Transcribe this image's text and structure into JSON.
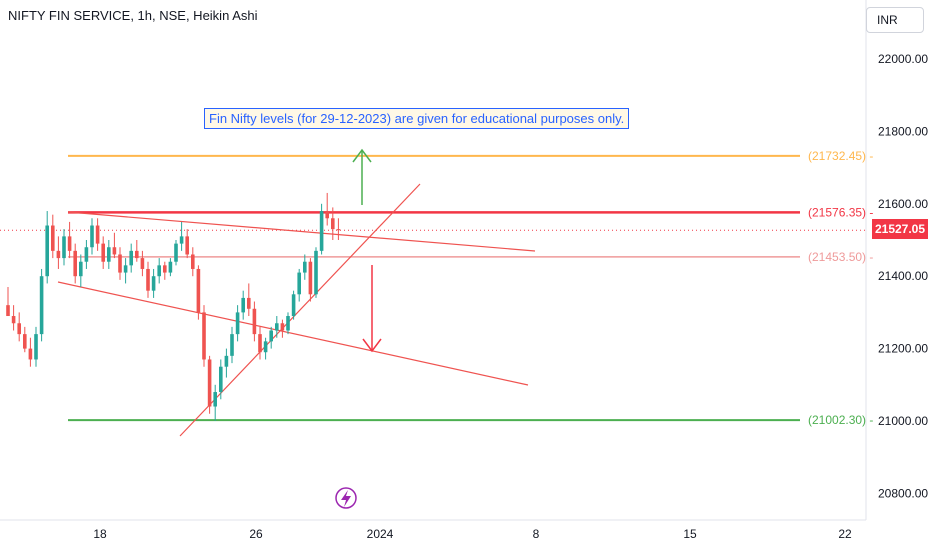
{
  "header": {
    "title": "NIFTY FIN SERVICE, 1h, NSE, Heikin Ashi",
    "currency": "INR"
  },
  "annotations": {
    "note": "Fin Nifty levels (for 29-12-2023) are given for educational purposes only."
  },
  "events": {
    "icon": "lightning-icon"
  },
  "colors": {
    "up": "#26a69a",
    "down": "#ef5350",
    "resistance": "#f23645",
    "support": "#4caf50",
    "target": "#ffb74d",
    "trend": "#ef5350",
    "note": "#2962ff"
  },
  "chart_data": {
    "type": "candlestick",
    "yaxis": {
      "ticks": [
        "22000.00",
        "21800.00",
        "21600.00",
        "21400.00",
        "21200.00",
        "21000.00",
        "20800.00"
      ],
      "ylim": [
        20700,
        22060
      ]
    },
    "xaxis": {
      "ticks": [
        "18",
        "26",
        "2024",
        "8",
        "15",
        "22"
      ]
    },
    "current_price": "21527.05",
    "levels": [
      {
        "label": "(21732.45)",
        "value": 21732.45,
        "color": "#ffb74d"
      },
      {
        "label": "(21576.35)",
        "value": 21576.35,
        "color": "#f23645"
      },
      {
        "label": "(21453.50)",
        "value": 21453.5,
        "color": "#ef9a9a"
      },
      {
        "label": "(21002.30)",
        "value": 21002.3,
        "color": "#4caf50"
      }
    ],
    "arrows": [
      {
        "direction": "up",
        "color": "#4caf50"
      },
      {
        "direction": "down",
        "color": "#f23645"
      }
    ],
    "candles": [
      [
        21320,
        21370,
        21300,
        21290
      ],
      [
        21290,
        21320,
        21250,
        21270
      ],
      [
        21270,
        21300,
        21220,
        21240
      ],
      [
        21240,
        21260,
        21190,
        21200
      ],
      [
        21200,
        21230,
        21150,
        21170
      ],
      [
        21170,
        21260,
        21150,
        21240
      ],
      [
        21240,
        21420,
        21220,
        21400
      ],
      [
        21400,
        21580,
        21380,
        21540
      ],
      [
        21540,
        21570,
        21450,
        21470
      ],
      [
        21470,
        21510,
        21420,
        21450
      ],
      [
        21450,
        21530,
        21430,
        21510
      ],
      [
        21510,
        21550,
        21450,
        21470
      ],
      [
        21470,
        21490,
        21380,
        21400
      ],
      [
        21400,
        21460,
        21370,
        21440
      ],
      [
        21440,
        21500,
        21420,
        21480
      ],
      [
        21480,
        21560,
        21460,
        21540
      ],
      [
        21540,
        21560,
        21470,
        21490
      ],
      [
        21490,
        21510,
        21420,
        21440
      ],
      [
        21440,
        21500,
        21420,
        21480
      ],
      [
        21480,
        21520,
        21450,
        21460
      ],
      [
        21460,
        21480,
        21390,
        21410
      ],
      [
        21410,
        21450,
        21380,
        21430
      ],
      [
        21430,
        21490,
        21410,
        21470
      ],
      [
        21470,
        21500,
        21440,
        21450
      ],
      [
        21450,
        21470,
        21400,
        21420
      ],
      [
        21420,
        21440,
        21340,
        21360
      ],
      [
        21360,
        21420,
        21340,
        21400
      ],
      [
        21400,
        21450,
        21380,
        21430
      ],
      [
        21430,
        21440,
        21390,
        21410
      ],
      [
        21410,
        21450,
        21400,
        21440
      ],
      [
        21440,
        21500,
        21430,
        21490
      ],
      [
        21490,
        21550,
        21470,
        21510
      ],
      [
        21510,
        21530,
        21450,
        21460
      ],
      [
        21460,
        21480,
        21400,
        21420
      ],
      [
        21420,
        21430,
        21280,
        21300
      ],
      [
        21300,
        21320,
        21150,
        21170
      ],
      [
        21170,
        21180,
        21020,
        21040
      ],
      [
        21040,
        21100,
        21000,
        21080
      ],
      [
        21080,
        21170,
        21060,
        21150
      ],
      [
        21150,
        21200,
        21120,
        21180
      ],
      [
        21180,
        21260,
        21160,
        21240
      ],
      [
        21240,
        21320,
        21220,
        21300
      ],
      [
        21300,
        21360,
        21280,
        21340
      ],
      [
        21340,
        21380,
        21290,
        21310
      ],
      [
        21310,
        21330,
        21220,
        21240
      ],
      [
        21240,
        21260,
        21170,
        21190
      ],
      [
        21190,
        21230,
        21170,
        21220
      ],
      [
        21220,
        21260,
        21200,
        21250
      ],
      [
        21250,
        21290,
        21230,
        21270
      ],
      [
        21270,
        21280,
        21230,
        21250
      ],
      [
        21250,
        21300,
        21240,
        21290
      ],
      [
        21290,
        21360,
        21280,
        21350
      ],
      [
        21350,
        21420,
        21330,
        21410
      ],
      [
        21410,
        21460,
        21390,
        21440
      ],
      [
        21440,
        21450,
        21330,
        21350
      ],
      [
        21350,
        21480,
        21340,
        21470
      ],
      [
        21470,
        21600,
        21460,
        21580
      ],
      [
        21580,
        21630,
        21540,
        21560
      ],
      [
        21560,
        21590,
        21500,
        21530
      ],
      [
        21530,
        21560,
        21500,
        21527.05
      ]
    ]
  }
}
